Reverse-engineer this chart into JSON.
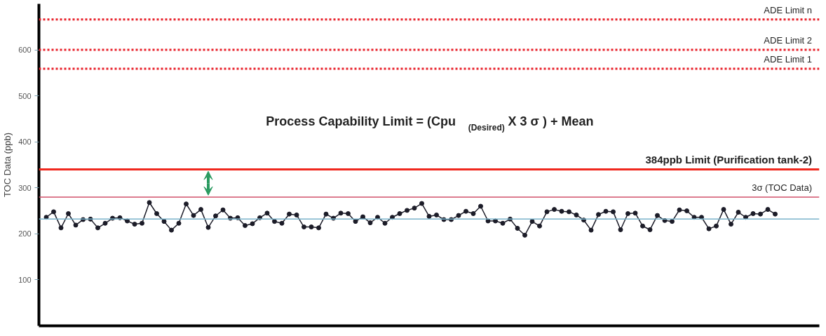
{
  "chart_data": {
    "type": "line",
    "ylabel": "TOC Data (ppb)",
    "categories": [
      null,
      null,
      null,
      null,
      null,
      null,
      null,
      null,
      null,
      null,
      null,
      null,
      null,
      null,
      null,
      null,
      null,
      null,
      null,
      null,
      null,
      null,
      null,
      null,
      null,
      null,
      null,
      null,
      null,
      null,
      null,
      null,
      null,
      null,
      null,
      null,
      null,
      null,
      null,
      null,
      null,
      null,
      null,
      null,
      null,
      null,
      null,
      null,
      null,
      null,
      null,
      null,
      null,
      null,
      null,
      null,
      null,
      null,
      null,
      null,
      null,
      null,
      null,
      null,
      null,
      null,
      null,
      null,
      null,
      null,
      null,
      null,
      null,
      null,
      null,
      null,
      null,
      null,
      null,
      null,
      null,
      null,
      null,
      null,
      null,
      null,
      null,
      null,
      null,
      null,
      null,
      null,
      null,
      null,
      null,
      null,
      null,
      null,
      null,
      null
    ],
    "series": [
      {
        "color": "#1c1c28",
        "values": [
          236,
          248,
          213,
          244,
          219,
          231,
          232,
          213,
          223,
          234,
          235,
          228,
          221,
          223,
          268,
          244,
          227,
          208,
          223,
          265,
          240,
          253,
          214,
          239,
          252,
          234,
          235,
          218,
          222,
          235,
          245,
          227,
          223,
          243,
          241,
          215,
          215,
          213,
          243,
          234,
          245,
          244,
          227,
          237,
          224,
          236,
          223,
          236,
          244,
          251,
          256,
          266,
          238,
          241,
          231,
          231,
          240,
          249,
          244,
          260,
          228,
          228,
          223,
          232,
          212,
          197,
          227,
          217,
          248,
          253,
          249,
          248,
          241,
          230,
          208,
          242,
          249,
          248,
          209,
          244,
          245,
          217,
          209,
          240,
          229,
          227,
          252,
          250,
          236,
          236,
          211,
          217,
          253,
          221,
          247,
          236,
          244,
          243,
          253,
          243
        ]
      }
    ],
    "ylim": [
      0,
      700
    ],
    "yticks": [
      100,
      200,
      300,
      400,
      500,
      600
    ],
    "grid": false,
    "marker": "circle",
    "line_style": "solid",
    "tick_labels": "y",
    "ref_lines": [
      {
        "axis": "y",
        "value": 666,
        "label": "ADE Limit n",
        "color": "#e8202a",
        "line_style": "dotted"
      },
      {
        "axis": "y",
        "value": 600,
        "label": "ADE Limit 2",
        "color": "#e8202a",
        "line_style": "dotted"
      },
      {
        "axis": "y",
        "value": 559,
        "label": "ADE Limit 1",
        "color": "#e8202a",
        "line_style": "dotted"
      },
      {
        "axis": "y",
        "value": 340,
        "label": "384ppb Limit (Purification tank-2)",
        "color": "#f0281e",
        "line_style": "solid"
      },
      {
        "axis": "y",
        "value": 280,
        "label": "3σ (TOC Data)",
        "color": "#d0506a",
        "line_style": "solid"
      },
      {
        "axis": "y",
        "value": 232,
        "label": null,
        "color": "#7ab4cc",
        "line_style": "solid"
      }
    ],
    "annotations": [
      "Process Capability Limit = (Cpu$_{(Desired)}$ X 3 σ ) + Mean"
    ]
  }
}
